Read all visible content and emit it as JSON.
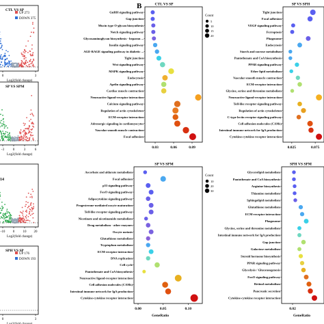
{
  "panel_b_label": "B",
  "volcano": [
    {
      "title": "CTL VS SP",
      "legend": [
        {
          "text": "UP 273",
          "color": "#e05050"
        },
        {
          "text": "DOWN 375",
          "color": "#2f6fd6"
        }
      ],
      "xticks": [
        "0",
        "3"
      ],
      "xlabel": "Log2(fold change)"
    },
    {
      "title": "SP VS SPM",
      "legend": [],
      "xticks": [
        "-3",
        "0",
        "3",
        "6"
      ],
      "xlabel": "Log2(fold change)"
    },
    {
      "title": "",
      "side_text": "14",
      "legend": [],
      "xticks": [
        "-10",
        "0",
        "10",
        "20"
      ],
      "xlabel": "Log2(fold change)"
    },
    {
      "title": "SPH VS SP",
      "legend": [
        {
          "text": "UP 176",
          "color": "#e05050"
        },
        {
          "text": "DOWN 193",
          "color": "#2f6fd6"
        }
      ],
      "xticks": [
        "0",
        "3"
      ],
      "xlabel": "Log2(fold change)"
    }
  ],
  "chart_data": [
    {
      "type": "scatter",
      "title": "CTL VS SP",
      "xlabel": "",
      "xlim": [
        0.02,
        0.1
      ],
      "xticks": [
        "0.03",
        "0.06",
        "0.09"
      ],
      "xtick_values": [
        0.03,
        0.06,
        0.09
      ],
      "legend": {
        "title": "Count",
        "sizes": [
          5,
          10,
          15,
          20
        ],
        "labels": [
          "5",
          "10",
          "15",
          "20"
        ]
      },
      "categories": [
        "GnRH signaling pathway",
        "Gap junction",
        "Mucin type O-glycan biosynthesis",
        "Notch signaling pathway",
        "Glycosaminoglycan biosynthesis - heparan ...",
        "Insulin signaling pathway",
        "AGE-RAGE signaling pathway in diabetic ...",
        "Tight junction",
        "Wnt signaling pathway",
        "MAPK signaling pathway",
        "Endocytosis",
        "Apelin signaling pathway",
        "Cardiac muscle contraction",
        "Neuroactive ligand-receptor interaction",
        "Calcium signaling pathway",
        "Regulation of actin cytoskeleton",
        "ECM-receptor interaction",
        "Adrenergic signaling in cardiomyocytes",
        "Vascular smooth muscle contraction",
        "Focal adhesion"
      ],
      "x": [
        0.026,
        0.026,
        0.027,
        0.027,
        0.028,
        0.03,
        0.033,
        0.036,
        0.042,
        0.056,
        0.046,
        0.044,
        0.044,
        0.1,
        0.066,
        0.063,
        0.063,
        0.066,
        0.08,
        0.091
      ],
      "size": [
        5,
        5,
        5,
        5,
        5,
        6,
        6,
        8,
        10,
        13,
        11,
        10,
        10,
        16,
        16,
        15,
        13,
        15,
        17,
        20
      ],
      "color": [
        "#5a5ff0",
        "#5a5ff0",
        "#6a5fe8",
        "#6a5fe8",
        "#7a62e0",
        "#4aa8f0",
        "#4aa8f0",
        "#3ad0e8",
        "#6fd8c0",
        "#e8e040",
        "#f0b030",
        "#b0e070",
        "#e8d040",
        "#f5a020",
        "#e07020",
        "#e87a20",
        "#e06010",
        "#e05010",
        "#d83010",
        "#d01010"
      ]
    },
    {
      "type": "scatter",
      "title": "SP VS SPH",
      "xlabel": "",
      "xlim": [
        0.015,
        0.085
      ],
      "xticks": [
        "0.025",
        "0.075"
      ],
      "xtick_values": [
        0.025,
        0.075
      ],
      "categories": [
        "Tight junction",
        "Focal adhesion",
        "VEGF signaling pathway",
        "Ferroptosis",
        "Phagosome",
        "Endocytosis",
        "Starch and sucrose metabolism",
        "Pantothenate and CoA biosynthesis",
        "PPAR signaling pathway",
        "Ether lipid metabolism",
        "Vascular smooth muscle contraction",
        "ECM-receptor interaction",
        "Glycine, serine and threonine metabolism",
        "Neuroactive ligand-receptor interaction",
        "Toll-like receptor signaling pathway",
        "Regulation of actin cytoskeleton",
        "C-type lectin receptor signaling pathway",
        "Cell adhesion molecules (CAMs)",
        "Intestinal immune network for IgA production",
        "Cytokine-cytokine receptor interaction"
      ],
      "x": [
        0.07,
        0.064,
        0.028,
        0.026,
        0.06,
        0.042,
        0.022,
        0.022,
        0.036,
        0.024,
        0.038,
        0.042,
        0.026,
        0.083,
        0.042,
        0.05,
        0.04,
        0.064,
        0.066,
        0.083
      ],
      "size": [
        12,
        10,
        5,
        5,
        8,
        8,
        4,
        4,
        6,
        4,
        6,
        7,
        4,
        15,
        7,
        9,
        7,
        12,
        10,
        16
      ],
      "color": [
        "#5a5ff0",
        "#5a5ff0",
        "#5a5ff0",
        "#5a5ff0",
        "#6a5fe8",
        "#4aa8f0",
        "#4aa8f0",
        "#4aa8f0",
        "#3ad0e8",
        "#3ad0e8",
        "#6fd8c0",
        "#b0e070",
        "#b0e070",
        "#f5b020",
        "#e8b020",
        "#e8a020",
        "#e07020",
        "#e05010",
        "#d83010",
        "#d01010"
      ]
    },
    {
      "type": "scatter",
      "title": "SP VS SPM",
      "xlabel": "GeneRatio",
      "xlim": [
        0.0,
        0.12
      ],
      "xticks": [
        "0.00",
        "0.05",
        "0.10"
      ],
      "xtick_values": [
        0.0,
        0.05,
        0.1
      ],
      "legend": {
        "title": "Count",
        "sizes": [
          10,
          20,
          30
        ],
        "labels": [
          "10",
          "20",
          "30"
        ]
      },
      "categories": [
        "Ascorbate and aldarate metabolism",
        "Focal adhesion",
        "p53 signaling pathway",
        "FoxO signaling pathway",
        "Adipocytokine signaling pathway",
        "Progesterone-mediated oocyte maturation",
        "Toll-like receptor signaling pathway",
        "Nicotinate and nicotinamide metabolism",
        "Drug metabolism - other enzymes",
        "Oocyte meiosis",
        "Glutathione metabolism",
        "Tryptophan metabolism",
        "ECM-receptor interaction",
        "DNA replication",
        "Cell cycle",
        "Pantothenate and CoA biosynthesis",
        "Neuroactive ligand-receptor interaction",
        "Cell adhesion molecules (CAMs)",
        "Intestinal immune network for IgA production",
        "Cytokine-cytokine receptor interaction"
      ],
      "x": [
        0.014,
        0.05,
        0.02,
        0.026,
        0.02,
        0.026,
        0.026,
        0.016,
        0.02,
        0.026,
        0.02,
        0.02,
        0.026,
        0.02,
        0.038,
        0.012,
        0.08,
        0.054,
        0.06,
        0.112
      ],
      "size": [
        4,
        12,
        8,
        8,
        7,
        8,
        8,
        4,
        7,
        8,
        6,
        6,
        8,
        6,
        10,
        3,
        20,
        14,
        14,
        26
      ],
      "color": [
        "#5a5ff0",
        "#4aa8f0",
        "#5a5ff0",
        "#5a5ff0",
        "#6a5fe8",
        "#6a5fe8",
        "#6a5fe8",
        "#6a5fe8",
        "#7a62e0",
        "#7a62e0",
        "#8a62d8",
        "#4aa8f0",
        "#3ad0e8",
        "#6fd8c0",
        "#b0e070",
        "#e8e040",
        "#e8b020",
        "#e06010",
        "#e05010",
        "#d01010"
      ]
    },
    {
      "type": "scatter",
      "title": "SPH VS SPM",
      "xlabel": "GeneRatio",
      "xlim": [
        0.01,
        0.06
      ],
      "xticks": [
        "0.02"
      ],
      "xtick_values": [
        0.02
      ],
      "categories": [
        "Glycerolipid metabolism",
        "Pantothenate and CoA biosynthesis",
        "Arginine biosynthesis",
        "Thiamine metabolism",
        "Sphingolipid metabolism",
        "Glutathione metabolism",
        "ECM-receptor interaction",
        "Phagosome",
        "Glycine, serine and threonine metabolism",
        "Intestinal immune network for IgA production",
        "Gap junction",
        "Galactose metabolism",
        "Steroid hormone biosynthesis",
        "PPAR signaling pathway",
        "Glycolysis / Gluconeogenesis",
        "FoxO signaling pathway",
        "Retinol metabolism",
        "Pancreatic secretion",
        "Cytokine-cytokine receptor interaction"
      ],
      "x": [
        0.022,
        0.022,
        0.023,
        0.023,
        0.024,
        0.032,
        0.034,
        0.04,
        0.03,
        0.03,
        0.036,
        0.03,
        0.032,
        0.034,
        0.036,
        0.04,
        0.044,
        0.046,
        0.052
      ],
      "size": [
        4,
        4,
        4,
        4,
        4,
        6,
        6,
        8,
        5,
        5,
        7,
        5,
        6,
        6,
        7,
        8,
        9,
        10,
        12
      ],
      "color": [
        "#5a5ff0",
        "#5a5ff0",
        "#5a5ff0",
        "#5a5ff0",
        "#6a5fe8",
        "#4aa8f0",
        "#4aa8f0",
        "#3ad0e8",
        "#3ad0e8",
        "#6fd8c0",
        "#b0e070",
        "#b0e070",
        "#e8e040",
        "#e8d040",
        "#e8b020",
        "#e07020",
        "#e06010",
        "#d83010",
        "#d01010"
      ]
    }
  ]
}
